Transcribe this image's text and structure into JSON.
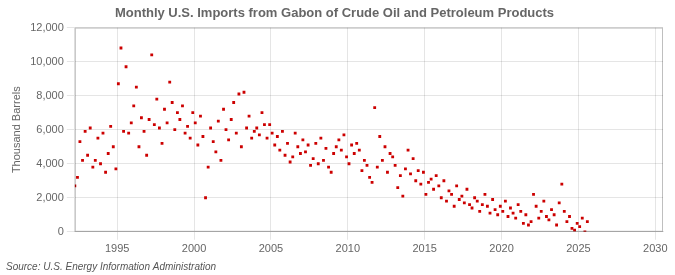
{
  "chart_data": {
    "type": "scatter",
    "title": "Monthly U.S. Imports from Gabon of Crude Oil and Petroleum Products",
    "ylabel": "Thousand Barrels",
    "annotations": [
      "Source: U.S. Energy Information Administration"
    ],
    "color": "#cc0000",
    "marker": "square",
    "grid": true,
    "xlim": [
      1992.25,
      2030.5
    ],
    "xticks": [
      1995,
      2000,
      2005,
      2010,
      2015,
      2020,
      2025,
      2030
    ],
    "ylim": [
      0,
      12000
    ],
    "yticks": [
      0,
      {
        "value": 2000,
        "label": "2,000"
      },
      {
        "value": 4000,
        "label": "4,000"
      },
      {
        "value": 6000,
        "label": "6,000"
      },
      {
        "value": 8000,
        "label": "8,000"
      },
      {
        "value": 10000,
        "label": "10,000"
      },
      {
        "value": 12000,
        "label": "12,000"
      }
    ],
    "x": [
      1992.25,
      1992.42,
      1992.58,
      1992.75,
      1992.92,
      1993.08,
      1993.25,
      1993.42,
      1993.58,
      1993.75,
      1993.92,
      1994.08,
      1994.25,
      1994.42,
      1994.58,
      1994.75,
      1994.92,
      1995.08,
      1995.25,
      1995.42,
      1995.58,
      1995.75,
      1995.92,
      1996.08,
      1996.25,
      1996.42,
      1996.58,
      1996.75,
      1996.92,
      1997.08,
      1997.25,
      1997.42,
      1997.58,
      1997.75,
      1997.92,
      1998.08,
      1998.25,
      1998.42,
      1998.58,
      1998.75,
      1998.92,
      1999.08,
      1999.25,
      1999.42,
      1999.58,
      1999.75,
      1999.92,
      2000.08,
      2000.25,
      2000.42,
      2000.58,
      2000.75,
      2000.92,
      2001.08,
      2001.25,
      2001.42,
      2001.58,
      2001.75,
      2001.92,
      2002.08,
      2002.25,
      2002.42,
      2002.58,
      2002.75,
      2002.92,
      2003.08,
      2003.25,
      2003.42,
      2003.58,
      2003.75,
      2003.92,
      2004.08,
      2004.25,
      2004.42,
      2004.58,
      2004.75,
      2004.92,
      2005.08,
      2005.25,
      2005.42,
      2005.58,
      2005.75,
      2005.92,
      2006.08,
      2006.25,
      2006.42,
      2006.58,
      2006.75,
      2006.92,
      2007.08,
      2007.25,
      2007.42,
      2007.58,
      2007.75,
      2007.92,
      2008.08,
      2008.25,
      2008.42,
      2008.58,
      2008.75,
      2008.92,
      2009.08,
      2009.25,
      2009.42,
      2009.58,
      2009.75,
      2009.92,
      2010.08,
      2010.25,
      2010.42,
      2010.58,
      2010.75,
      2010.92,
      2011.08,
      2011.25,
      2011.42,
      2011.58,
      2011.75,
      2011.92,
      2012.08,
      2012.25,
      2012.42,
      2012.58,
      2012.75,
      2012.92,
      2013.08,
      2013.25,
      2013.42,
      2013.58,
      2013.75,
      2013.92,
      2014.08,
      2014.25,
      2014.42,
      2014.58,
      2014.75,
      2014.92,
      2015.08,
      2015.25,
      2015.42,
      2015.58,
      2015.75,
      2015.92,
      2016.08,
      2016.25,
      2016.42,
      2016.58,
      2016.75,
      2016.92,
      2017.08,
      2017.25,
      2017.42,
      2017.58,
      2017.75,
      2017.92,
      2018.08,
      2018.25,
      2018.42,
      2018.58,
      2018.75,
      2018.92,
      2019.08,
      2019.25,
      2019.42,
      2019.58,
      2019.75,
      2019.92,
      2020.08,
      2020.25,
      2020.42,
      2020.58,
      2020.75,
      2020.92,
      2021.08,
      2021.25,
      2021.42,
      2021.58,
      2021.75,
      2021.92,
      2022.08,
      2022.25,
      2022.42,
      2022.58,
      2022.75,
      2022.92,
      2023.08,
      2023.25,
      2023.42,
      2023.58,
      2023.75,
      2023.92,
      2024.08,
      2024.25,
      2024.42,
      2024.58,
      2024.75,
      2024.92,
      2025.08,
      2025.25,
      2025.42,
      2025.58
    ],
    "values": [
      2700,
      3200,
      5300,
      4200,
      5900,
      4500,
      6100,
      3800,
      4200,
      5500,
      4000,
      5800,
      3500,
      4600,
      6200,
      5000,
      3700,
      8700,
      10800,
      5900,
      9700,
      5800,
      6400,
      7400,
      8500,
      5000,
      6700,
      5900,
      4500,
      6600,
      10400,
      6300,
      7800,
      6100,
      5200,
      7200,
      6400,
      8800,
      7600,
      6000,
      7000,
      6600,
      7400,
      5800,
      6200,
      5500,
      7000,
      6400,
      5100,
      6800,
      5600,
      2000,
      3800,
      6100,
      5300,
      4700,
      6500,
      4200,
      7200,
      6000,
      5400,
      6600,
      7600,
      5800,
      8100,
      5000,
      8200,
      6100,
      6800,
      5500,
      5900,
      6100,
      5700,
      7000,
      6300,
      5500,
      6300,
      5800,
      5100,
      5600,
      4800,
      5900,
      4500,
      5200,
      4100,
      4400,
      5800,
      5000,
      4600,
      5400,
      4700,
      5100,
      3900,
      4300,
      5200,
      4000,
      5500,
      4200,
      4900,
      3800,
      3500,
      4600,
      5000,
      5400,
      4800,
      5700,
      4400,
      4000,
      5100,
      4600,
      5200,
      4800,
      3600,
      4200,
      3900,
      3200,
      2900,
      7300,
      3800,
      5600,
      4200,
      5000,
      3500,
      4600,
      4400,
      3900,
      2600,
      3300,
      2100,
      3700,
      4800,
      3400,
      4300,
      3000,
      3600,
      2800,
      3500,
      2200,
      2900,
      3100,
      2500,
      3300,
      2700,
      2000,
      3000,
      1800,
      2400,
      2200,
      1500,
      2700,
      1900,
      2100,
      1700,
      2500,
      1600,
      1400,
      2000,
      1800,
      1200,
      1600,
      2200,
      1500,
      1100,
      1900,
      1300,
      1000,
      1500,
      1200,
      1800,
      900,
      1400,
      1100,
      800,
      1600,
      1200,
      500,
      1000,
      400,
      600,
      2200,
      1500,
      800,
      1200,
      1800,
      900,
      700,
      1300,
      1000,
      400,
      1700,
      2800,
      1200,
      600,
      900,
      200,
      100,
      500,
      300,
      800,
      0,
      600
    ]
  }
}
